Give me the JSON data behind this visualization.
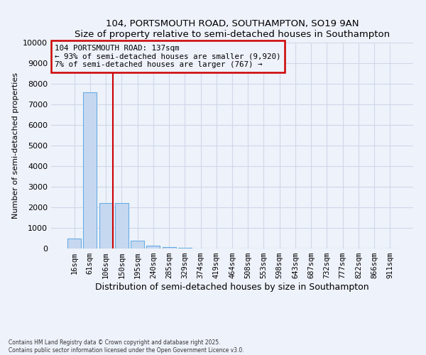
{
  "title1": "104, PORTSMOUTH ROAD, SOUTHAMPTON, SO19 9AN",
  "title2": "Size of property relative to semi-detached houses in Southampton",
  "xlabel": "Distribution of semi-detached houses by size in Southampton",
  "ylabel": "Number of semi-detached properties",
  "categories": [
    "16sqm",
    "61sqm",
    "106sqm",
    "150sqm",
    "195sqm",
    "240sqm",
    "285sqm",
    "329sqm",
    "374sqm",
    "419sqm",
    "464sqm",
    "508sqm",
    "553sqm",
    "598sqm",
    "643sqm",
    "687sqm",
    "732sqm",
    "777sqm",
    "822sqm",
    "866sqm",
    "911sqm"
  ],
  "values": [
    500,
    7600,
    2200,
    2200,
    390,
    150,
    60,
    20,
    10,
    5,
    5,
    3,
    2,
    2,
    1,
    1,
    1,
    1,
    1,
    1,
    1
  ],
  "bar_color": "#c5d8f0",
  "bar_edge_color": "#6aade4",
  "ylim": [
    0,
    10000
  ],
  "yticks": [
    0,
    1000,
    2000,
    3000,
    4000,
    5000,
    6000,
    7000,
    8000,
    9000,
    10000
  ],
  "annotation_title": "104 PORTSMOUTH ROAD: 137sqm",
  "annotation_line1": "← 93% of semi-detached houses are smaller (9,920)",
  "annotation_line2": "7% of semi-detached houses are larger (767) →",
  "red_line_x": 2.45,
  "annotation_color": "#cc0000",
  "footer1": "Contains HM Land Registry data © Crown copyright and database right 2025.",
  "footer2": "Contains public sector information licensed under the Open Government Licence v3.0.",
  "bg_color": "#eef2fa",
  "grid_color": "#d0d8e8"
}
